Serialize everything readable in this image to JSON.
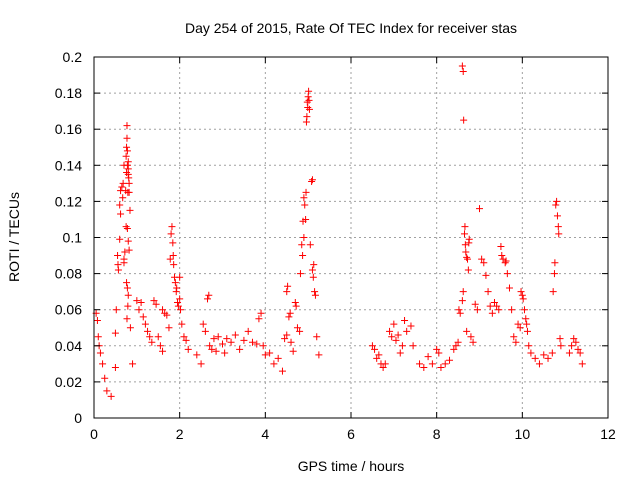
{
  "chart_data": {
    "type": "scatter",
    "title": "Day 254 of 2015, Rate Of TEC Index for receiver stas",
    "xlabel": "GPS time / hours",
    "ylabel": "ROTI / TECUs",
    "xlim": [
      0,
      12
    ],
    "ylim": [
      0,
      0.2
    ],
    "xticks": [
      "0",
      "2",
      "4",
      "6",
      "8",
      "10",
      "12"
    ],
    "yticks": [
      "0",
      "0.02",
      "0.04",
      "0.06",
      "0.08",
      "0.1",
      "0.12",
      "0.14",
      "0.16",
      "0.18",
      "0.2"
    ],
    "grid": true,
    "marker": "+",
    "color": "#ff0000",
    "series": [
      {
        "name": "ROTI",
        "points": [
          [
            0.05,
            0.058
          ],
          [
            0.08,
            0.054
          ],
          [
            0.1,
            0.045
          ],
          [
            0.12,
            0.04
          ],
          [
            0.15,
            0.036
          ],
          [
            0.2,
            0.03
          ],
          [
            0.25,
            0.022
          ],
          [
            0.3,
            0.015
          ],
          [
            0.4,
            0.012
          ],
          [
            0.5,
            0.028
          ],
          [
            0.5,
            0.047
          ],
          [
            0.52,
            0.06
          ],
          [
            0.55,
            0.09
          ],
          [
            0.56,
            0.085
          ],
          [
            0.57,
            0.082
          ],
          [
            0.6,
            0.099
          ],
          [
            0.6,
            0.118
          ],
          [
            0.62,
            0.113
          ],
          [
            0.62,
            0.126
          ],
          [
            0.65,
            0.128
          ],
          [
            0.67,
            0.122
          ],
          [
            0.68,
            0.13
          ],
          [
            0.7,
            0.14
          ],
          [
            0.7,
            0.086
          ],
          [
            0.7,
            0.088
          ],
          [
            0.72,
            0.092
          ],
          [
            0.74,
            0.126
          ],
          [
            0.75,
            0.145
          ],
          [
            0.76,
            0.15
          ],
          [
            0.76,
            0.136
          ],
          [
            0.77,
            0.155
          ],
          [
            0.77,
            0.162
          ],
          [
            0.78,
            0.148
          ],
          [
            0.78,
            0.14
          ],
          [
            0.79,
            0.125
          ],
          [
            0.8,
            0.142
          ],
          [
            0.8,
            0.138
          ],
          [
            0.8,
            0.135
          ],
          [
            0.81,
            0.133
          ],
          [
            0.82,
            0.13
          ],
          [
            0.82,
            0.125
          ],
          [
            0.84,
            0.115
          ],
          [
            0.75,
            0.106
          ],
          [
            0.78,
            0.105
          ],
          [
            0.8,
            0.098
          ],
          [
            0.82,
            0.093
          ],
          [
            0.76,
            0.075
          ],
          [
            0.78,
            0.072
          ],
          [
            0.8,
            0.068
          ],
          [
            0.79,
            0.062
          ],
          [
            0.77,
            0.055
          ],
          [
            0.85,
            0.05
          ],
          [
            0.9,
            0.03
          ],
          [
            1.0,
            0.065
          ],
          [
            1.05,
            0.06
          ],
          [
            1.1,
            0.064
          ],
          [
            1.15,
            0.056
          ],
          [
            1.2,
            0.052
          ],
          [
            1.25,
            0.048
          ],
          [
            1.3,
            0.045
          ],
          [
            1.35,
            0.042
          ],
          [
            1.4,
            0.065
          ],
          [
            1.45,
            0.063
          ],
          [
            1.5,
            0.045
          ],
          [
            1.55,
            0.04
          ],
          [
            1.6,
            0.037
          ],
          [
            1.6,
            0.06
          ],
          [
            1.65,
            0.058
          ],
          [
            1.7,
            0.057
          ],
          [
            1.75,
            0.05
          ],
          [
            1.78,
            0.088
          ],
          [
            1.8,
            0.102
          ],
          [
            1.82,
            0.106
          ],
          [
            1.84,
            0.097
          ],
          [
            1.85,
            0.09
          ],
          [
            1.86,
            0.085
          ],
          [
            1.88,
            0.078
          ],
          [
            1.9,
            0.075
          ],
          [
            1.92,
            0.07
          ],
          [
            1.95,
            0.064
          ],
          [
            1.97,
            0.062
          ],
          [
            2.0,
            0.066
          ],
          [
            2.0,
            0.078
          ],
          [
            1.93,
            0.072
          ],
          [
            2.02,
            0.06
          ],
          [
            2.05,
            0.052
          ],
          [
            2.1,
            0.045
          ],
          [
            2.15,
            0.043
          ],
          [
            2.2,
            0.038
          ],
          [
            2.4,
            0.035
          ],
          [
            2.5,
            0.03
          ],
          [
            2.55,
            0.052
          ],
          [
            2.6,
            0.048
          ],
          [
            2.65,
            0.066
          ],
          [
            2.68,
            0.068
          ],
          [
            2.7,
            0.04
          ],
          [
            2.75,
            0.038
          ],
          [
            2.8,
            0.044
          ],
          [
            2.85,
            0.037
          ],
          [
            2.9,
            0.045
          ],
          [
            3.0,
            0.041
          ],
          [
            3.05,
            0.036
          ],
          [
            3.1,
            0.044
          ],
          [
            3.2,
            0.042
          ],
          [
            3.3,
            0.046
          ],
          [
            3.4,
            0.038
          ],
          [
            3.5,
            0.043
          ],
          [
            3.6,
            0.048
          ],
          [
            3.7,
            0.042
          ],
          [
            3.8,
            0.041
          ],
          [
            3.85,
            0.055
          ],
          [
            3.9,
            0.058
          ],
          [
            3.95,
            0.04
          ],
          [
            4.0,
            0.035
          ],
          [
            4.1,
            0.036
          ],
          [
            4.2,
            0.03
          ],
          [
            4.3,
            0.033
          ],
          [
            4.4,
            0.026
          ],
          [
            4.45,
            0.044
          ],
          [
            4.5,
            0.046
          ],
          [
            4.5,
            0.07
          ],
          [
            4.52,
            0.073
          ],
          [
            4.55,
            0.056
          ],
          [
            4.58,
            0.058
          ],
          [
            4.6,
            0.042
          ],
          [
            4.65,
            0.037
          ],
          [
            4.7,
            0.064
          ],
          [
            4.72,
            0.062
          ],
          [
            4.75,
            0.05
          ],
          [
            4.8,
            0.048
          ],
          [
            4.82,
            0.08
          ],
          [
            4.85,
            0.096
          ],
          [
            4.87,
            0.09
          ],
          [
            4.88,
            0.109
          ],
          [
            4.9,
            0.1
          ],
          [
            4.9,
            0.122
          ],
          [
            4.92,
            0.118
          ],
          [
            4.94,
            0.11
          ],
          [
            4.95,
            0.125
          ],
          [
            4.96,
            0.164
          ],
          [
            4.97,
            0.167
          ],
          [
            4.98,
            0.175
          ],
          [
            4.99,
            0.172
          ],
          [
            5.0,
            0.178
          ],
          [
            5.01,
            0.181
          ],
          [
            5.02,
            0.176
          ],
          [
            5.03,
            0.171
          ],
          [
            5.05,
            0.096
          ],
          [
            5.08,
            0.131
          ],
          [
            5.1,
            0.132
          ],
          [
            5.1,
            0.082
          ],
          [
            5.12,
            0.078
          ],
          [
            5.13,
            0.085
          ],
          [
            5.15,
            0.07
          ],
          [
            5.17,
            0.068
          ],
          [
            5.2,
            0.045
          ],
          [
            5.25,
            0.035
          ],
          [
            6.5,
            0.04
          ],
          [
            6.55,
            0.038
          ],
          [
            6.6,
            0.033
          ],
          [
            6.65,
            0.035
          ],
          [
            6.7,
            0.03
          ],
          [
            6.75,
            0.028
          ],
          [
            6.8,
            0.03
          ],
          [
            6.9,
            0.048
          ],
          [
            6.95,
            0.045
          ],
          [
            7.0,
            0.052
          ],
          [
            7.05,
            0.043
          ],
          [
            7.1,
            0.046
          ],
          [
            7.15,
            0.036
          ],
          [
            7.2,
            0.04
          ],
          [
            7.25,
            0.054
          ],
          [
            7.3,
            0.048
          ],
          [
            7.4,
            0.051
          ],
          [
            7.45,
            0.04
          ],
          [
            7.6,
            0.03
          ],
          [
            7.7,
            0.028
          ],
          [
            7.8,
            0.034
          ],
          [
            7.9,
            0.03
          ],
          [
            8.0,
            0.038
          ],
          [
            8.05,
            0.036
          ],
          [
            8.1,
            0.028
          ],
          [
            8.2,
            0.03
          ],
          [
            8.3,
            0.032
          ],
          [
            8.4,
            0.038
          ],
          [
            8.45,
            0.04
          ],
          [
            8.5,
            0.042
          ],
          [
            8.52,
            0.06
          ],
          [
            8.55,
            0.058
          ],
          [
            8.6,
            0.065
          ],
          [
            8.62,
            0.07
          ],
          [
            8.65,
            0.102
          ],
          [
            8.66,
            0.106
          ],
          [
            8.67,
            0.096
          ],
          [
            8.68,
            0.092
          ],
          [
            8.7,
            0.089
          ],
          [
            8.72,
            0.088
          ],
          [
            8.74,
            0.082
          ],
          [
            8.75,
            0.097
          ],
          [
            8.76,
            0.099
          ],
          [
            8.6,
            0.195
          ],
          [
            8.62,
            0.192
          ],
          [
            8.63,
            0.165
          ],
          [
            8.7,
            0.048
          ],
          [
            8.8,
            0.045
          ],
          [
            8.85,
            0.042
          ],
          [
            8.9,
            0.063
          ],
          [
            8.95,
            0.06
          ],
          [
            9.0,
            0.116
          ],
          [
            9.05,
            0.088
          ],
          [
            9.1,
            0.086
          ],
          [
            9.15,
            0.079
          ],
          [
            9.2,
            0.07
          ],
          [
            9.25,
            0.062
          ],
          [
            9.3,
            0.058
          ],
          [
            9.35,
            0.064
          ],
          [
            9.4,
            0.062
          ],
          [
            9.45,
            0.06
          ],
          [
            9.5,
            0.095
          ],
          [
            9.52,
            0.09
          ],
          [
            9.55,
            0.088
          ],
          [
            9.6,
            0.086
          ],
          [
            9.62,
            0.087
          ],
          [
            9.65,
            0.08
          ],
          [
            9.7,
            0.072
          ],
          [
            9.75,
            0.06
          ],
          [
            9.8,
            0.045
          ],
          [
            9.85,
            0.042
          ],
          [
            9.9,
            0.052
          ],
          [
            9.95,
            0.05
          ],
          [
            9.97,
            0.07
          ],
          [
            10.0,
            0.068
          ],
          [
            10.02,
            0.066
          ],
          [
            10.05,
            0.06
          ],
          [
            10.08,
            0.055
          ],
          [
            10.1,
            0.052
          ],
          [
            10.12,
            0.048
          ],
          [
            10.15,
            0.04
          ],
          [
            10.2,
            0.036
          ],
          [
            10.3,
            0.033
          ],
          [
            10.4,
            0.03
          ],
          [
            10.5,
            0.035
          ],
          [
            10.6,
            0.033
          ],
          [
            10.7,
            0.036
          ],
          [
            10.72,
            0.07
          ],
          [
            10.75,
            0.08
          ],
          [
            10.76,
            0.086
          ],
          [
            10.78,
            0.118
          ],
          [
            10.8,
            0.12
          ],
          [
            10.82,
            0.112
          ],
          [
            10.84,
            0.106
          ],
          [
            10.85,
            0.102
          ],
          [
            10.88,
            0.044
          ],
          [
            10.9,
            0.04
          ],
          [
            11.1,
            0.036
          ],
          [
            11.15,
            0.04
          ],
          [
            11.2,
            0.044
          ],
          [
            11.25,
            0.042
          ],
          [
            11.3,
            0.038
          ],
          [
            11.35,
            0.036
          ],
          [
            11.4,
            0.03
          ]
        ]
      }
    ]
  }
}
